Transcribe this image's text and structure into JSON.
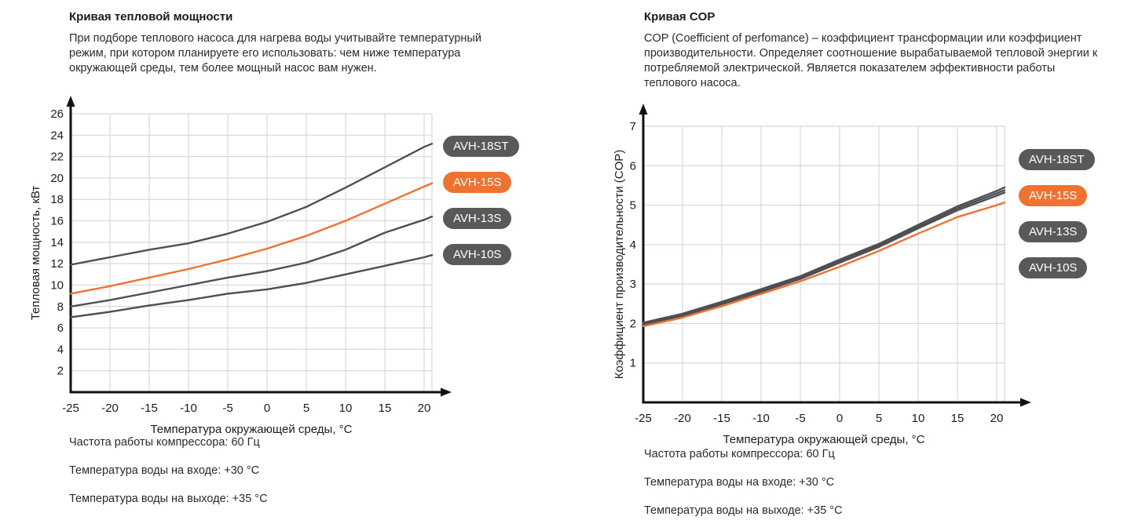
{
  "colors": {
    "accent_orange": "#ef7230",
    "badge_gray": "#58595b",
    "curve_gray": "#4e4f52",
    "grid_line": "#d8d8d8",
    "axis": "#111111",
    "tick_text": "#1c1c1c"
  },
  "sections": [
    {
      "title": "Кривая тепловой мощности",
      "description": "При подборе теплового насоса для нагрева воды учитывайте температурный режим, при котором планируете его использовать: чем ниже температура окружающей среды, тем более мощный насос вам нужен.",
      "notes": [
        "Частота работы компрессора: 60 Гц",
        "Температура воды на входе: +30 °C",
        "Температура воды на выходе: +35 °C"
      ]
    },
    {
      "title": "Кривая COP",
      "description": "COP (Coefficient of perfomance) – коэффициент трансформации или коэффициент производительности. Определяет соотношение вырабатываемой тепловой энергии к потребляемой электрической. Является показателем эффективности работы теплового насоса.",
      "notes": [
        "Частота работы компрессора: 60 Гц",
        "Температура воды на входе: +30 °C",
        "Температура воды на выходе: +35 °C"
      ]
    }
  ],
  "chart_data": [
    {
      "type": "line",
      "title": "Кривая тепловой мощности",
      "xlabel": "Температура окружающей среды, °C",
      "ylabel": "Тепловая мощность, кВт",
      "x": [
        -25,
        -20,
        -15,
        -10,
        -5,
        0,
        5,
        10,
        15,
        20,
        21
      ],
      "x_ticks": [
        -25,
        -20,
        -15,
        -10,
        -5,
        0,
        5,
        10,
        15,
        20
      ],
      "y_ticks": [
        2,
        4,
        6,
        8,
        10,
        12,
        14,
        16,
        18,
        20,
        22,
        24,
        26
      ],
      "xlim": [
        -25,
        21
      ],
      "ylim": [
        0,
        26
      ],
      "grid": true,
      "legend_position": "right",
      "series": [
        {
          "name": "AVH-18ST",
          "color": "gray",
          "values": [
            11.9,
            12.6,
            13.3,
            13.9,
            14.8,
            15.9,
            17.3,
            19.1,
            21.0,
            22.9,
            23.2
          ]
        },
        {
          "name": "AVH-15S",
          "color": "orange",
          "values": [
            9.2,
            9.9,
            10.7,
            11.5,
            12.4,
            13.4,
            14.6,
            16.0,
            17.6,
            19.2,
            19.5
          ]
        },
        {
          "name": "AVH-13S",
          "color": "gray",
          "values": [
            8.0,
            8.6,
            9.3,
            10.0,
            10.7,
            11.3,
            12.1,
            13.3,
            14.9,
            16.1,
            16.4
          ]
        },
        {
          "name": "AVH-10S",
          "color": "gray",
          "values": [
            7.0,
            7.5,
            8.1,
            8.6,
            9.2,
            9.6,
            10.2,
            11.0,
            11.8,
            12.6,
            12.8
          ]
        }
      ]
    },
    {
      "type": "line",
      "title": "Кривая COP",
      "xlabel": "Температура окружающей среды, °C",
      "ylabel": "Коэффициент производительности (COP)",
      "x": [
        -25,
        -20,
        -15,
        -10,
        -5,
        0,
        5,
        10,
        15,
        20,
        21
      ],
      "x_ticks": [
        -25,
        -20,
        -15,
        -10,
        -5,
        0,
        5,
        10,
        15,
        20
      ],
      "y_ticks": [
        1,
        2,
        3,
        4,
        5,
        6,
        7
      ],
      "xlim": [
        -25,
        21
      ],
      "ylim": [
        0,
        7
      ],
      "grid": true,
      "legend_position": "right",
      "series": [
        {
          "name": "AVH-18ST",
          "color": "gray",
          "values": [
            2.02,
            2.25,
            2.55,
            2.87,
            3.2,
            3.62,
            4.02,
            4.5,
            4.97,
            5.36,
            5.45
          ]
        },
        {
          "name": "AVH-15S",
          "color": "orange",
          "values": [
            1.93,
            2.15,
            2.44,
            2.75,
            3.07,
            3.44,
            3.84,
            4.28,
            4.7,
            5.0,
            5.07
          ]
        },
        {
          "name": "AVH-13S",
          "color": "gray",
          "values": [
            2.0,
            2.22,
            2.52,
            2.84,
            3.17,
            3.58,
            3.98,
            4.45,
            4.92,
            5.3,
            5.38
          ]
        },
        {
          "name": "AVH-10S",
          "color": "gray",
          "values": [
            1.97,
            2.19,
            2.49,
            2.8,
            3.13,
            3.54,
            3.94,
            4.41,
            4.87,
            5.24,
            5.32
          ]
        }
      ]
    }
  ]
}
